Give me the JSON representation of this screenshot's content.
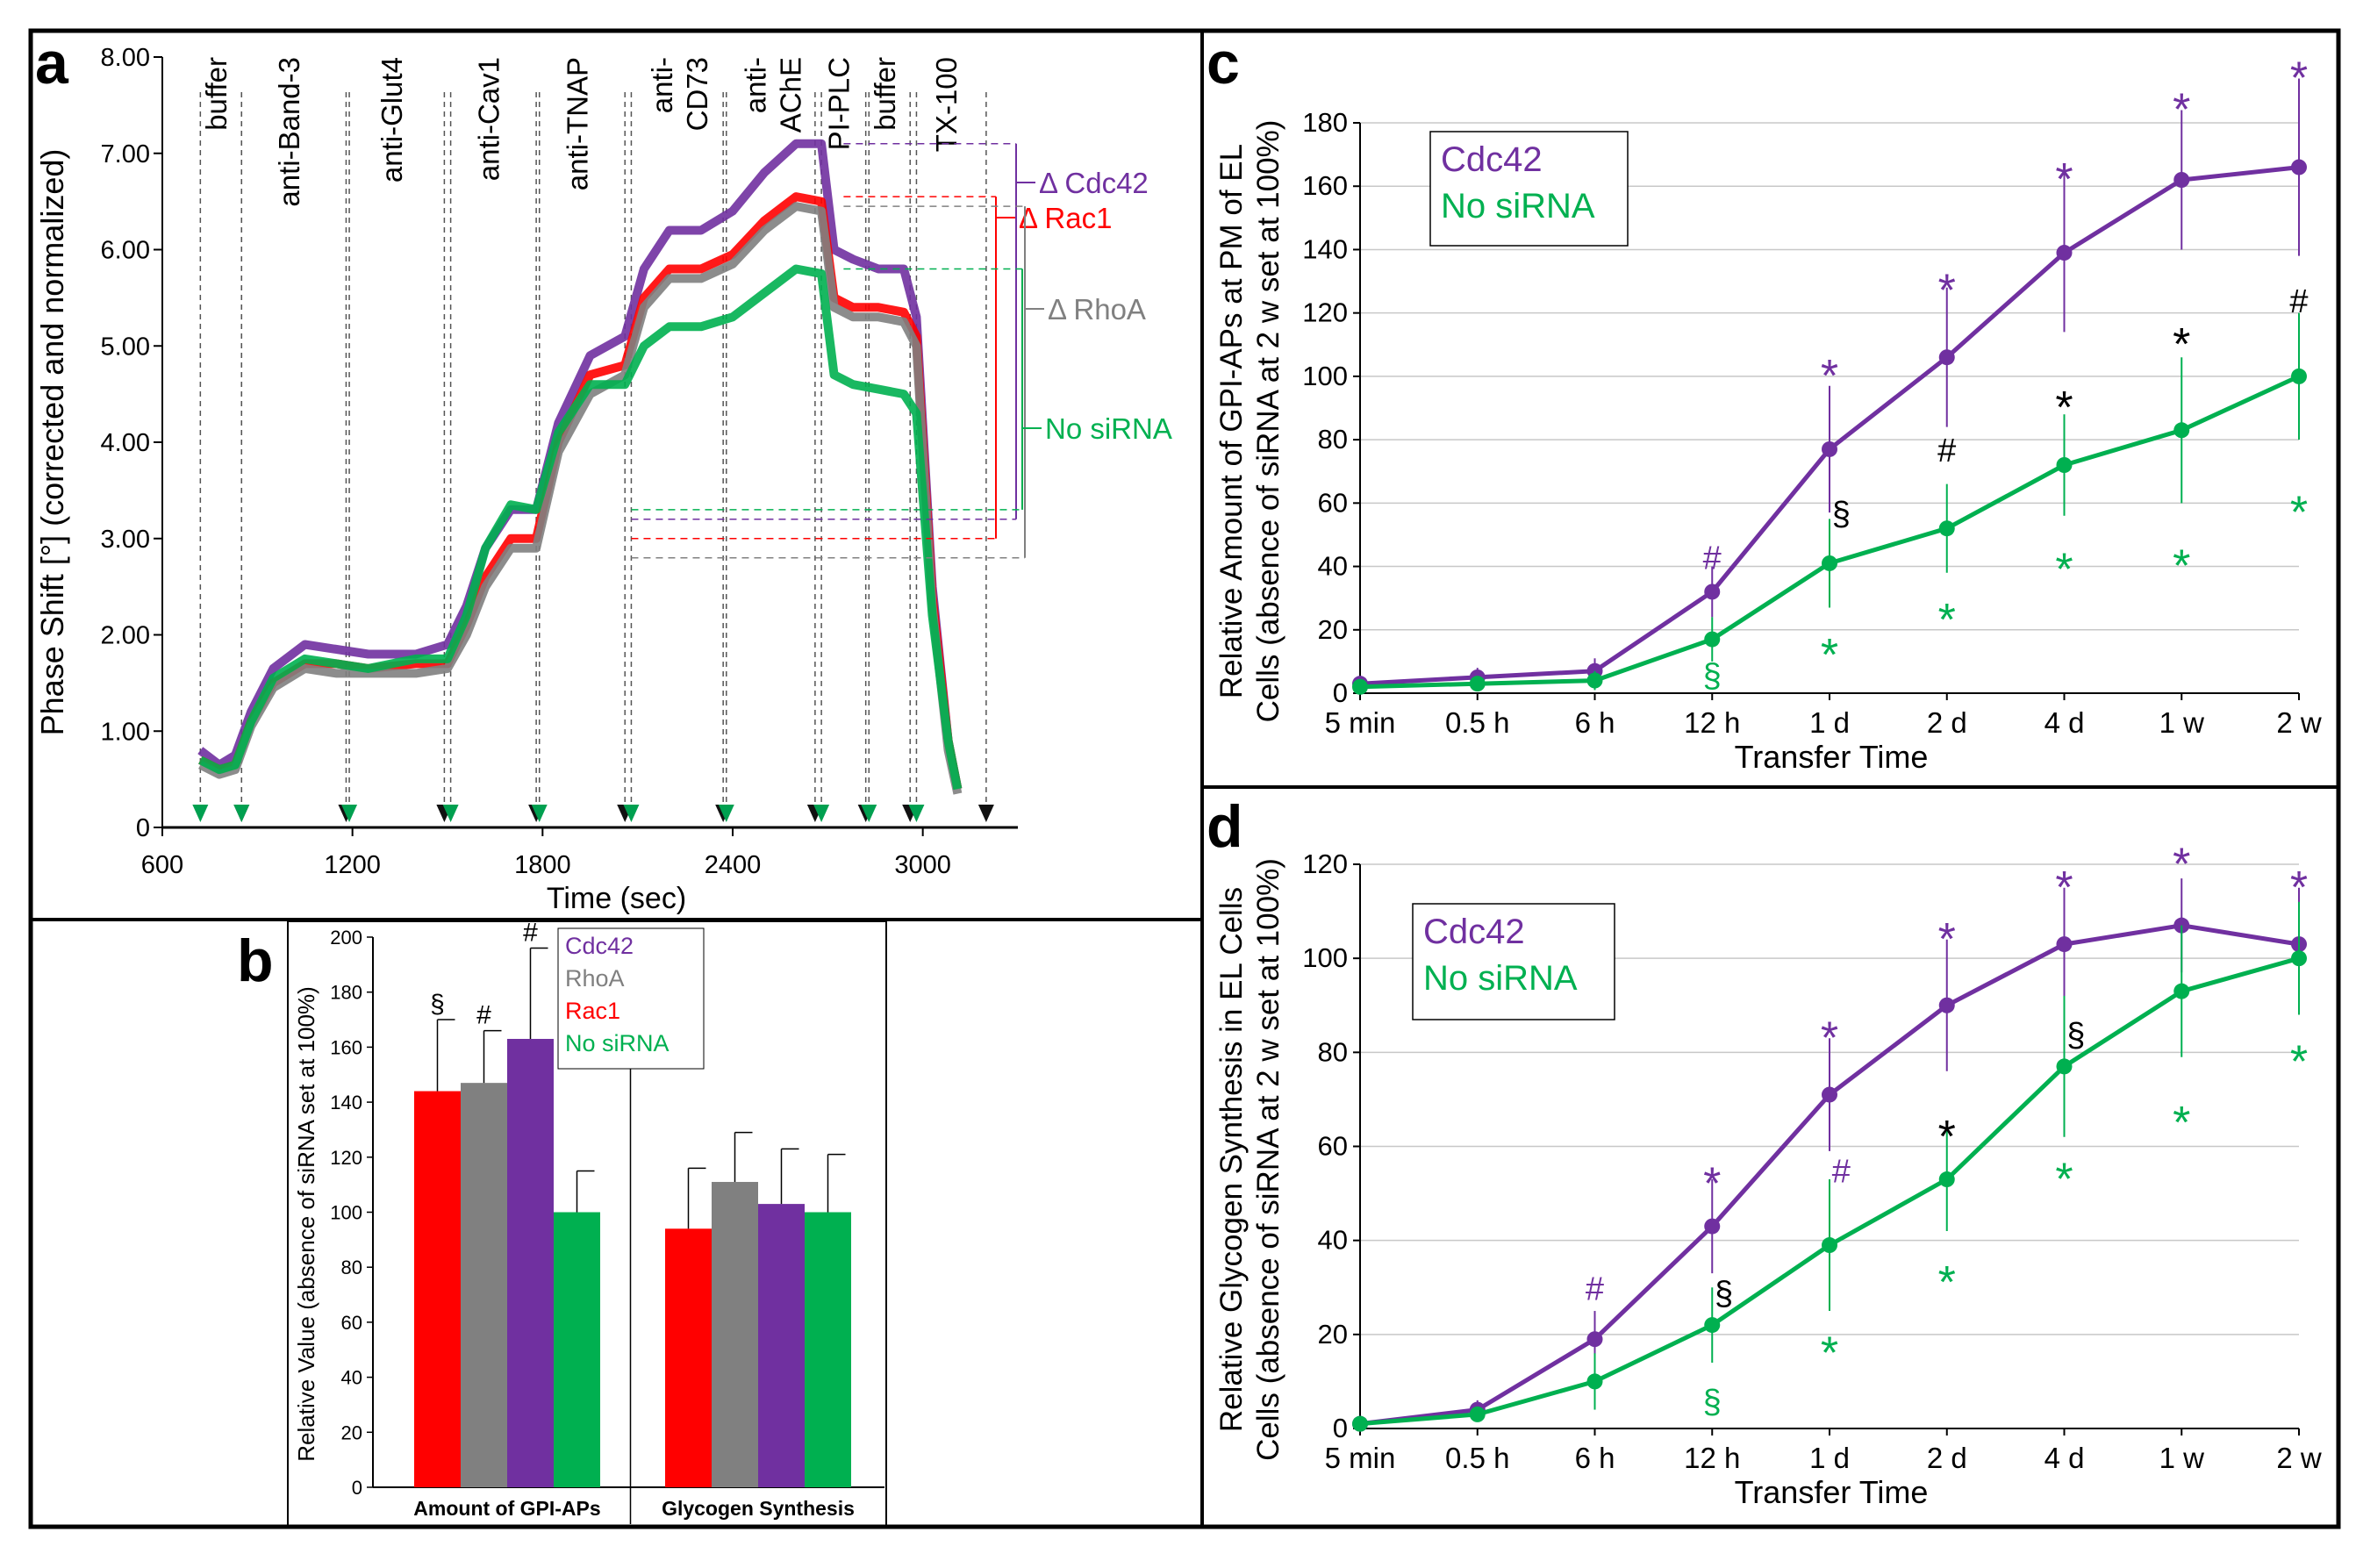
{
  "colors": {
    "cdc42": "#7030a0",
    "rac1": "#ff0000",
    "rhoa": "#808080",
    "nosirna": "#00b050",
    "black": "#000000",
    "grid": "#bfbfbf"
  },
  "panels": {
    "a": "a",
    "b": "b",
    "c": "c",
    "d": "d"
  },
  "chart_data": [
    {
      "id": "panel-a",
      "type": "line",
      "xlabel": "Time (sec)",
      "ylabel": "Phase Shift [°] (corrected and normalized)",
      "xlim": [
        600,
        3300
      ],
      "ylim": [
        0,
        8
      ],
      "x_tick_labels": [
        "600",
        "1200",
        "1800",
        "2400",
        "3000"
      ],
      "x_ticks": [
        600,
        1200,
        1800,
        2400,
        3000
      ],
      "y_tick_labels": [
        "0",
        "1.00",
        "2.00",
        "3.00",
        "4.00",
        "5.00",
        "6.00",
        "7.00",
        "8.00"
      ],
      "y_ticks": [
        0,
        1,
        2,
        3,
        4,
        5,
        6,
        7,
        8
      ],
      "additions": [
        {
          "label": "buffer",
          "start": 720,
          "end": 850
        },
        {
          "label": "anti-Band-3",
          "start": 850,
          "end": 1180
        },
        {
          "label": "anti-Glut4",
          "start": 1190,
          "end": 1490
        },
        {
          "label": "anti-Cav1",
          "start": 1510,
          "end": 1780
        },
        {
          "label": "anti-TNAP",
          "start": 1790,
          "end": 2060
        },
        {
          "label": "anti-\nCD73",
          "start": 2080,
          "end": 2370
        },
        {
          "label": "anti-\nAChE",
          "start": 2380,
          "end": 2660
        },
        {
          "label": "PI-PLC",
          "start": 2680,
          "end": 2820
        },
        {
          "label": "buffer",
          "start": 2830,
          "end": 2960
        },
        {
          "label": "TX-100",
          "start": 2980,
          "end": 3200
        }
      ],
      "series": [
        {
          "name": "Cdc42",
          "color": "#7030a0",
          "x": [
            720,
            780,
            830,
            880,
            950,
            1050,
            1150,
            1250,
            1400,
            1500,
            1560,
            1620,
            1700,
            1780,
            1850,
            1950,
            2060,
            2120,
            2200,
            2300,
            2400,
            2500,
            2600,
            2680,
            2720,
            2780,
            2860,
            2940,
            2980,
            3030,
            3080,
            3110
          ],
          "y": [
            0.8,
            0.65,
            0.75,
            1.2,
            1.65,
            1.9,
            1.85,
            1.8,
            1.8,
            1.9,
            2.3,
            2.9,
            3.3,
            3.3,
            4.2,
            4.9,
            5.1,
            5.8,
            6.2,
            6.2,
            6.4,
            6.8,
            7.1,
            7.1,
            6.0,
            5.9,
            5.8,
            5.8,
            5.3,
            2.5,
            0.9,
            0.4
          ]
        },
        {
          "name": "Rac1",
          "color": "#ff0000",
          "x": [
            720,
            780,
            830,
            880,
            950,
            1050,
            1150,
            1250,
            1400,
            1500,
            1560,
            1620,
            1700,
            1780,
            1850,
            1950,
            2060,
            2120,
            2200,
            2300,
            2400,
            2500,
            2600,
            2680,
            2720,
            2780,
            2860,
            2940,
            2980,
            3030,
            3080,
            3110
          ],
          "y": [
            0.7,
            0.6,
            0.65,
            1.1,
            1.5,
            1.7,
            1.7,
            1.65,
            1.7,
            1.7,
            2.1,
            2.6,
            3.0,
            3.0,
            4.0,
            4.7,
            4.8,
            5.5,
            5.8,
            5.8,
            5.95,
            6.3,
            6.55,
            6.5,
            5.5,
            5.4,
            5.4,
            5.35,
            5.1,
            2.4,
            0.9,
            0.4
          ]
        },
        {
          "name": "RhoA",
          "color": "#808080",
          "x": [
            720,
            780,
            830,
            880,
            950,
            1050,
            1150,
            1250,
            1400,
            1500,
            1560,
            1620,
            1700,
            1780,
            1850,
            1950,
            2060,
            2120,
            2200,
            2300,
            2400,
            2500,
            2600,
            2680,
            2720,
            2780,
            2860,
            2940,
            2980,
            3030,
            3080,
            3110
          ],
          "y": [
            0.65,
            0.55,
            0.6,
            1.05,
            1.45,
            1.65,
            1.6,
            1.6,
            1.6,
            1.65,
            2.0,
            2.5,
            2.9,
            2.9,
            3.9,
            4.5,
            4.7,
            5.4,
            5.7,
            5.7,
            5.85,
            6.2,
            6.45,
            6.4,
            5.4,
            5.3,
            5.3,
            5.25,
            5.0,
            2.3,
            0.8,
            0.35
          ]
        },
        {
          "name": "No siRNA",
          "color": "#00b050",
          "x": [
            720,
            780,
            830,
            880,
            950,
            1050,
            1150,
            1250,
            1400,
            1500,
            1560,
            1620,
            1700,
            1780,
            1850,
            1950,
            2060,
            2120,
            2200,
            2300,
            2400,
            2500,
            2600,
            2680,
            2720,
            2780,
            2860,
            2940,
            2980,
            3030,
            3080,
            3110
          ],
          "y": [
            0.7,
            0.6,
            0.65,
            1.1,
            1.55,
            1.75,
            1.7,
            1.65,
            1.75,
            1.75,
            2.2,
            2.9,
            3.35,
            3.3,
            4.1,
            4.6,
            4.6,
            5.0,
            5.2,
            5.2,
            5.3,
            5.55,
            5.8,
            5.75,
            4.7,
            4.6,
            4.55,
            4.5,
            4.3,
            2.2,
            0.9,
            0.4
          ]
        }
      ],
      "delta_labels": [
        {
          "text": "Δ Cdc42",
          "color": "#7030a0",
          "from": 3.2,
          "to": 7.1
        },
        {
          "text": "Δ Rac1",
          "color": "#ff0000",
          "from": 3.0,
          "to": 6.55
        },
        {
          "text": "Δ RhoA",
          "color": "#808080",
          "from": 2.8,
          "to": 6.45
        },
        {
          "text": "No siRNA",
          "color": "#00b050",
          "from": 3.3,
          "to": 5.8
        }
      ]
    },
    {
      "id": "panel-b",
      "type": "bar",
      "ylabel": "Relative Value (absence of siRNA set at 100%)",
      "ylim": [
        0,
        200
      ],
      "y_tick_labels": [
        "0",
        "20",
        "40",
        "60",
        "80",
        "100",
        "120",
        "140",
        "160",
        "180",
        "200"
      ],
      "y_ticks": [
        0,
        20,
        40,
        60,
        80,
        100,
        120,
        140,
        160,
        180,
        200
      ],
      "categories": [
        "Amount of GPI-APs",
        "Glycogen Synthesis"
      ],
      "series": [
        {
          "name": "Rac1",
          "color": "#ff0000",
          "values": [
            144,
            94
          ],
          "errors": [
            26,
            22
          ],
          "marks": [
            "§",
            ""
          ]
        },
        {
          "name": "RhoA",
          "color": "#808080",
          "values": [
            147,
            111
          ],
          "errors": [
            19,
            18
          ],
          "marks": [
            "#",
            ""
          ]
        },
        {
          "name": "Cdc42",
          "color": "#7030a0",
          "values": [
            163,
            103
          ],
          "errors": [
            33,
            20
          ],
          "marks": [
            "#",
            ""
          ]
        },
        {
          "name": "No siRNA",
          "color": "#00b050",
          "values": [
            100,
            100
          ],
          "errors": [
            15,
            21
          ],
          "marks": [
            "",
            ""
          ]
        }
      ],
      "legend": [
        {
          "name": "Cdc42",
          "color": "#7030a0"
        },
        {
          "name": "RhoA",
          "color": "#808080"
        },
        {
          "name": "Rac1",
          "color": "#ff0000"
        },
        {
          "name": "No siRNA",
          "color": "#00b050"
        }
      ]
    },
    {
      "id": "panel-c",
      "type": "line",
      "xlabel": "Transfer Time",
      "ylabel": "Relative Amount of GPI-APs at PM of EL\nCells (absence of siRNA at 2 w set at 100%)",
      "categories": [
        "5 min",
        "0.5 h",
        "6 h",
        "12 h",
        "1 d",
        "2 d",
        "4 d",
        "1 w",
        "2 w"
      ],
      "ylim": [
        0,
        180
      ],
      "y_tick_labels": [
        "0",
        "20",
        "40",
        "60",
        "80",
        "100",
        "120",
        "140",
        "160",
        "180"
      ],
      "y_ticks": [
        0,
        20,
        40,
        60,
        80,
        100,
        120,
        140,
        160,
        180
      ],
      "legend": [
        {
          "name": "Cdc42",
          "color": "#7030a0"
        },
        {
          "name": "No siRNA",
          "color": "#00b050"
        }
      ],
      "series": [
        {
          "name": "Cdc42",
          "color": "#7030a0",
          "values": [
            3,
            5,
            7,
            32,
            77,
            106,
            139,
            162,
            166
          ],
          "errors": [
            2,
            3,
            4,
            8,
            20,
            22,
            25,
            22,
            28
          ]
        },
        {
          "name": "No siRNA",
          "color": "#00b050",
          "values": [
            2,
            3,
            4,
            17,
            41,
            52,
            72,
            83,
            100
          ],
          "errors": [
            2,
            2,
            3,
            7,
            14,
            14,
            16,
            23,
            20
          ]
        }
      ],
      "annotations": [
        {
          "text": "*",
          "cat": 4,
          "value": 103,
          "color": "#7030a0"
        },
        {
          "text": "*",
          "cat": 5,
          "value": 130,
          "color": "#7030a0"
        },
        {
          "text": "*",
          "cat": 6,
          "value": 165,
          "color": "#7030a0"
        },
        {
          "text": "*",
          "cat": 7,
          "value": 187,
          "color": "#7030a0"
        },
        {
          "text": "*",
          "cat": 8,
          "value": 197,
          "color": "#7030a0"
        },
        {
          "text": "#",
          "cat": 3,
          "value": 43,
          "color": "#7030a0"
        },
        {
          "text": "§",
          "cat": 3,
          "value": 6,
          "color": "#00b050"
        },
        {
          "text": "*",
          "cat": 4,
          "value": 15,
          "color": "#00b050"
        },
        {
          "text": "*",
          "cat": 5,
          "value": 26,
          "color": "#00b050"
        },
        {
          "text": "*",
          "cat": 6,
          "value": 42,
          "color": "#00b050"
        },
        {
          "text": "*",
          "cat": 7,
          "value": 43,
          "color": "#00b050"
        },
        {
          "text": "*",
          "cat": 8,
          "value": 60,
          "color": "#00b050"
        },
        {
          "text": "§",
          "cat": 4,
          "value": 57,
          "color": "#000000",
          "dx": 0.1
        },
        {
          "text": "#",
          "cat": 5,
          "value": 77,
          "color": "#000000"
        },
        {
          "text": "*",
          "cat": 6,
          "value": 93,
          "color": "#000000"
        },
        {
          "text": "*",
          "cat": 7,
          "value": 113,
          "color": "#000000"
        },
        {
          "text": "#",
          "cat": 8,
          "value": 124,
          "color": "#000000"
        }
      ]
    },
    {
      "id": "panel-d",
      "type": "line",
      "xlabel": "Transfer Time",
      "ylabel": "Relative Glycogen Synthesis in EL Cells\nCells (absence of siRNA at 2 w set at 100%)",
      "categories": [
        "5 min",
        "0.5 h",
        "6 h",
        "12 h",
        "1 d",
        "2 d",
        "4 d",
        "1 w",
        "2 w"
      ],
      "ylim": [
        0,
        120
      ],
      "y_tick_labels": [
        "0",
        "20",
        "40",
        "60",
        "80",
        "100",
        "120"
      ],
      "y_ticks": [
        0,
        20,
        40,
        60,
        80,
        100,
        120
      ],
      "legend": [
        {
          "name": "Cdc42",
          "color": "#7030a0"
        },
        {
          "name": "No siRNA",
          "color": "#00b050"
        }
      ],
      "series": [
        {
          "name": "Cdc42",
          "color": "#7030a0",
          "values": [
            1,
            4,
            19,
            43,
            71,
            90,
            103,
            107,
            103
          ],
          "errors": [
            1,
            2,
            6,
            10,
            12,
            14,
            12,
            10,
            12
          ]
        },
        {
          "name": "No siRNA",
          "color": "#00b050",
          "values": [
            1,
            3,
            10,
            22,
            39,
            53,
            77,
            93,
            100
          ],
          "errors": [
            1,
            1,
            6,
            8,
            14,
            11,
            15,
            14,
            12
          ]
        }
      ],
      "annotations": [
        {
          "text": "#",
          "cat": 2,
          "value": 30,
          "color": "#7030a0"
        },
        {
          "text": "*",
          "cat": 3,
          "value": 54,
          "color": "#7030a0"
        },
        {
          "text": "*",
          "cat": 4,
          "value": 85,
          "color": "#7030a0"
        },
        {
          "text": "*",
          "cat": 5,
          "value": 106,
          "color": "#7030a0"
        },
        {
          "text": "*",
          "cat": 6,
          "value": 117,
          "color": "#7030a0"
        },
        {
          "text": "*",
          "cat": 7,
          "value": 122,
          "color": "#7030a0"
        },
        {
          "text": "*",
          "cat": 8,
          "value": 117,
          "color": "#7030a0"
        },
        {
          "text": "#",
          "cat": 4,
          "value": 55,
          "color": "#7030a0",
          "dx": 0.1
        },
        {
          "text": "§",
          "cat": 3,
          "value": 6,
          "color": "#00b050"
        },
        {
          "text": "*",
          "cat": 4,
          "value": 18,
          "color": "#00b050"
        },
        {
          "text": "*",
          "cat": 5,
          "value": 33,
          "color": "#00b050"
        },
        {
          "text": "*",
          "cat": 6,
          "value": 55,
          "color": "#00b050"
        },
        {
          "text": "*",
          "cat": 7,
          "value": 67,
          "color": "#00b050"
        },
        {
          "text": "*",
          "cat": 8,
          "value": 80,
          "color": "#00b050"
        },
        {
          "text": "§",
          "cat": 3,
          "value": 29,
          "color": "#000000",
          "dx": 0.1
        },
        {
          "text": "*",
          "cat": 5,
          "value": 64,
          "color": "#000000"
        },
        {
          "text": "§",
          "cat": 6,
          "value": 84,
          "color": "#000000",
          "dx": 0.1
        }
      ]
    }
  ]
}
